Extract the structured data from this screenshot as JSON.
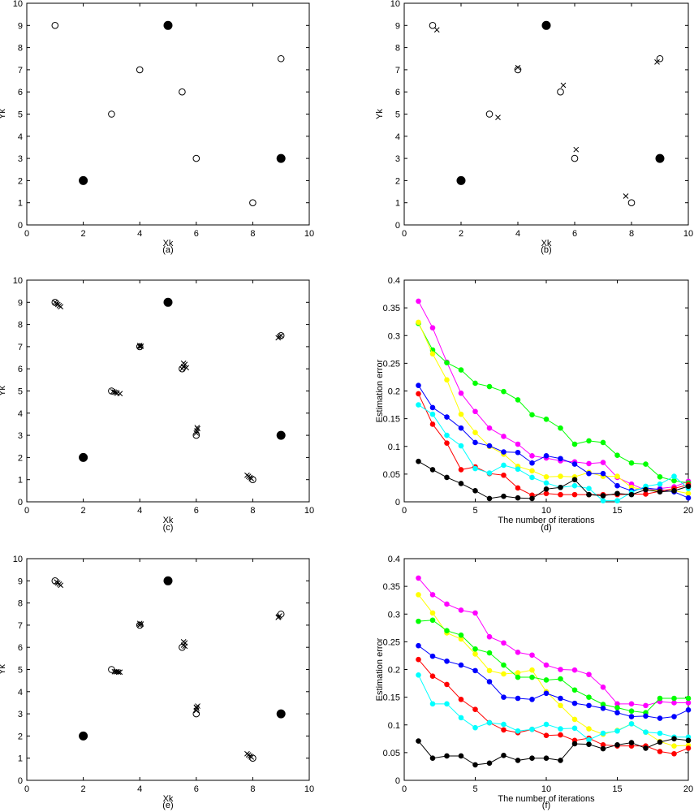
{
  "chart_data": [
    {
      "id": "a",
      "type": "scatter",
      "caption": "(a)",
      "xlabel": "Xk",
      "ylabel": "Yk",
      "xlim": [
        0,
        10
      ],
      "ylim": [
        0,
        10
      ],
      "xticks": [
        0,
        2,
        4,
        6,
        8,
        10
      ],
      "yticks": [
        0,
        1,
        2,
        3,
        4,
        5,
        6,
        7,
        8,
        9,
        10
      ],
      "anchors": [
        [
          2,
          2
        ],
        [
          5,
          9
        ],
        [
          9,
          3
        ]
      ],
      "unknown_nodes": [
        [
          1,
          9
        ],
        [
          3,
          5
        ],
        [
          4,
          7
        ],
        [
          5.5,
          6
        ],
        [
          6,
          3
        ],
        [
          8,
          1
        ],
        [
          9,
          7.5
        ]
      ],
      "estimates": []
    },
    {
      "id": "b",
      "type": "scatter",
      "caption": "(b)",
      "xlabel": "Xk",
      "ylabel": "Yk",
      "xlim": [
        0,
        10
      ],
      "ylim": [
        0,
        10
      ],
      "xticks": [
        0,
        2,
        4,
        6,
        8,
        10
      ],
      "yticks": [
        0,
        1,
        2,
        3,
        4,
        5,
        6,
        7,
        8,
        9,
        10
      ],
      "anchors": [
        [
          2,
          2
        ],
        [
          5,
          9
        ],
        [
          9,
          3
        ]
      ],
      "unknown_nodes": [
        [
          1,
          9
        ],
        [
          3,
          5
        ],
        [
          4,
          7
        ],
        [
          5.5,
          6
        ],
        [
          6,
          3
        ],
        [
          8,
          1
        ],
        [
          9,
          7.5
        ]
      ],
      "estimates": [
        [
          1.15,
          8.8
        ],
        [
          3.3,
          4.85
        ],
        [
          4.0,
          7.1
        ],
        [
          5.6,
          6.3
        ],
        [
          6.05,
          3.4
        ],
        [
          7.8,
          1.3
        ],
        [
          8.9,
          7.35
        ]
      ]
    },
    {
      "id": "c",
      "type": "scatter",
      "caption": "(c)",
      "xlabel": "Xk",
      "ylabel": "Yk",
      "xlim": [
        0,
        10
      ],
      "ylim": [
        0,
        10
      ],
      "xticks": [
        0,
        2,
        4,
        6,
        8,
        10
      ],
      "yticks": [
        0,
        1,
        2,
        3,
        4,
        5,
        6,
        7,
        8,
        9,
        10
      ],
      "anchors": [
        [
          2,
          2
        ],
        [
          5,
          9
        ],
        [
          9,
          3
        ]
      ],
      "unknown_nodes": [
        [
          1,
          9
        ],
        [
          3,
          5
        ],
        [
          4,
          7
        ],
        [
          5.5,
          6
        ],
        [
          6,
          3
        ],
        [
          8,
          1
        ],
        [
          9,
          7.5
        ]
      ],
      "estimates": [
        [
          1.0,
          9.0
        ],
        [
          1.05,
          8.95
        ],
        [
          1.1,
          8.9
        ],
        [
          1.15,
          8.85
        ],
        [
          1.2,
          8.8
        ],
        [
          3.05,
          4.97
        ],
        [
          3.1,
          4.95
        ],
        [
          3.15,
          4.93
        ],
        [
          3.2,
          4.9
        ],
        [
          3.3,
          4.88
        ],
        [
          4.0,
          7.0
        ],
        [
          4.0,
          7.05
        ],
        [
          4.05,
          7.02
        ],
        [
          5.5,
          6.0
        ],
        [
          5.55,
          6.1
        ],
        [
          5.6,
          6.2
        ],
        [
          5.55,
          6.25
        ],
        [
          5.65,
          6.05
        ],
        [
          6.0,
          3.1
        ],
        [
          6.02,
          3.2
        ],
        [
          6.05,
          3.3
        ],
        [
          6.03,
          3.35
        ],
        [
          7.8,
          1.2
        ],
        [
          7.85,
          1.15
        ],
        [
          7.9,
          1.1
        ],
        [
          7.95,
          1.05
        ],
        [
          8.9,
          7.4
        ],
        [
          8.95,
          7.45
        ],
        [
          9.0,
          7.5
        ]
      ]
    },
    {
      "id": "d",
      "type": "line",
      "caption": "(d)",
      "xlabel": "The number of iterations",
      "ylabel": "Estimation error",
      "xlim": [
        0,
        20
      ],
      "ylim": [
        0,
        0.4
      ],
      "xticks": [
        0,
        5,
        10,
        15,
        20
      ],
      "yticks": [
        0,
        0.05,
        0.1,
        0.15,
        0.2,
        0.25,
        0.3,
        0.35,
        0.4
      ],
      "x": [
        1,
        2,
        3,
        4,
        5,
        6,
        7,
        8,
        9,
        10,
        11,
        12,
        13,
        14,
        15,
        16,
        17,
        18,
        19,
        20
      ],
      "series": [
        {
          "color": "#ff00ff",
          "values": [
            0.362,
            0.314,
            0.252,
            0.196,
            0.163,
            0.133,
            0.118,
            0.104,
            0.083,
            0.079,
            0.074,
            0.072,
            0.069,
            0.071,
            0.044,
            0.032,
            0.021,
            0.024,
            0.027,
            0.037
          ]
        },
        {
          "color": "#00ff00",
          "values": [
            0.322,
            0.274,
            0.251,
            0.238,
            0.214,
            0.208,
            0.199,
            0.184,
            0.157,
            0.149,
            0.133,
            0.104,
            0.11,
            0.107,
            0.084,
            0.07,
            0.068,
            0.045,
            0.038,
            0.034
          ]
        },
        {
          "color": "#ffff00",
          "values": [
            0.324,
            0.267,
            0.22,
            0.158,
            0.125,
            0.1,
            0.086,
            0.064,
            0.056,
            0.045,
            0.046,
            0.045,
            0.053,
            0.046,
            0.046,
            0.026,
            0.022,
            0.02,
            0.02,
            0.015
          ]
        },
        {
          "color": "#0000ff",
          "values": [
            0.21,
            0.17,
            0.153,
            0.133,
            0.107,
            0.101,
            0.09,
            0.089,
            0.07,
            0.083,
            0.078,
            0.068,
            0.051,
            0.051,
            0.029,
            0.02,
            0.025,
            0.022,
            0.018,
            0.007
          ]
        },
        {
          "color": "#ff0000",
          "values": [
            0.195,
            0.14,
            0.106,
            0.058,
            0.063,
            0.051,
            0.048,
            0.025,
            0.012,
            0.015,
            0.013,
            0.013,
            0.013,
            0.013,
            0.013,
            0.014,
            0.014,
            0.019,
            0.024,
            0.031
          ]
        },
        {
          "color": "#00ffff",
          "values": [
            0.175,
            0.158,
            0.12,
            0.101,
            0.06,
            0.052,
            0.066,
            0.059,
            0.044,
            0.034,
            0.026,
            0.029,
            0.024,
            0.002,
            0.002,
            0.017,
            0.028,
            0.032,
            0.046,
            0.024
          ]
        },
        {
          "color": "#000000",
          "values": [
            0.073,
            0.058,
            0.044,
            0.033,
            0.02,
            0.006,
            0.01,
            0.007,
            0.006,
            0.023,
            0.026,
            0.04,
            0.013,
            0.011,
            0.015,
            0.013,
            0.022,
            0.018,
            0.02,
            0.028
          ]
        }
      ]
    },
    {
      "id": "e",
      "type": "scatter",
      "caption": "(e)",
      "xlabel": "Xk",
      "ylabel": "Yk",
      "xlim": [
        0,
        10
      ],
      "ylim": [
        0,
        10
      ],
      "xticks": [
        0,
        2,
        4,
        6,
        8,
        10
      ],
      "yticks": [
        0,
        1,
        2,
        3,
        4,
        5,
        6,
        7,
        8,
        9,
        10
      ],
      "anchors": [
        [
          2,
          2
        ],
        [
          5,
          9
        ],
        [
          9,
          3
        ]
      ],
      "unknown_nodes": [
        [
          1,
          9
        ],
        [
          3,
          5
        ],
        [
          4,
          7
        ],
        [
          5.5,
          6
        ],
        [
          6,
          3
        ],
        [
          8,
          1
        ],
        [
          9,
          7.5
        ]
      ],
      "estimates": [
        [
          1.05,
          8.95
        ],
        [
          1.1,
          8.9
        ],
        [
          1.15,
          8.85
        ],
        [
          1.2,
          8.8
        ],
        [
          3.1,
          4.9
        ],
        [
          3.15,
          4.9
        ],
        [
          3.2,
          4.9
        ],
        [
          3.25,
          4.88
        ],
        [
          3.3,
          4.88
        ],
        [
          4.0,
          7.0
        ],
        [
          4.05,
          7.05
        ],
        [
          4.0,
          7.08
        ],
        [
          5.55,
          6.1
        ],
        [
          5.6,
          6.2
        ],
        [
          5.55,
          6.25
        ],
        [
          5.6,
          6.05
        ],
        [
          6.0,
          3.15
        ],
        [
          6.02,
          3.25
        ],
        [
          6.05,
          3.35
        ],
        [
          6.0,
          3.3
        ],
        [
          7.8,
          1.2
        ],
        [
          7.85,
          1.15
        ],
        [
          7.9,
          1.1
        ],
        [
          7.95,
          1.05
        ],
        [
          8.9,
          7.35
        ],
        [
          8.95,
          7.42
        ],
        [
          8.92,
          7.38
        ]
      ]
    },
    {
      "id": "f",
      "type": "line",
      "caption": "(f)",
      "xlabel": "The number of iterations",
      "ylabel": "Estimation error",
      "xlim": [
        0,
        20
      ],
      "ylim": [
        0,
        0.4
      ],
      "xticks": [
        0,
        5,
        10,
        15,
        20
      ],
      "yticks": [
        0,
        0.05,
        0.1,
        0.15,
        0.2,
        0.25,
        0.3,
        0.35,
        0.4
      ],
      "x": [
        1,
        2,
        3,
        4,
        5,
        6,
        7,
        8,
        9,
        10,
        11,
        12,
        13,
        14,
        15,
        16,
        17,
        18,
        19,
        20
      ],
      "series": [
        {
          "color": "#ff00ff",
          "values": [
            0.365,
            0.335,
            0.318,
            0.307,
            0.302,
            0.259,
            0.248,
            0.231,
            0.226,
            0.208,
            0.2,
            0.199,
            0.191,
            0.168,
            0.138,
            0.138,
            0.135,
            0.142,
            0.14,
            0.14
          ]
        },
        {
          "color": "#ffff00",
          "values": [
            0.335,
            0.302,
            0.266,
            0.255,
            0.228,
            0.198,
            0.192,
            0.194,
            0.199,
            0.16,
            0.135,
            0.11,
            0.093,
            0.083,
            0.09,
            0.102,
            0.087,
            0.07,
            0.062,
            0.063
          ]
        },
        {
          "color": "#00ff00",
          "values": [
            0.287,
            0.289,
            0.27,
            0.262,
            0.237,
            0.23,
            0.208,
            0.186,
            0.186,
            0.181,
            0.183,
            0.163,
            0.15,
            0.137,
            0.131,
            0.125,
            0.122,
            0.148,
            0.148,
            0.148
          ]
        },
        {
          "color": "#0000ff",
          "values": [
            0.243,
            0.224,
            0.215,
            0.208,
            0.198,
            0.178,
            0.15,
            0.148,
            0.146,
            0.157,
            0.148,
            0.139,
            0.135,
            0.13,
            0.122,
            0.115,
            0.116,
            0.112,
            0.115,
            0.127
          ]
        },
        {
          "color": "#ff0000",
          "values": [
            0.218,
            0.188,
            0.173,
            0.146,
            0.128,
            0.104,
            0.091,
            0.086,
            0.092,
            0.081,
            0.082,
            0.072,
            0.076,
            0.064,
            0.062,
            0.062,
            0.062,
            0.052,
            0.048,
            0.058
          ]
        },
        {
          "color": "#00ffff",
          "values": [
            0.19,
            0.138,
            0.138,
            0.113,
            0.095,
            0.104,
            0.101,
            0.089,
            0.092,
            0.101,
            0.093,
            0.094,
            0.073,
            0.085,
            0.089,
            0.102,
            0.087,
            0.085,
            0.078,
            0.078
          ]
        },
        {
          "color": "#000000",
          "values": [
            0.071,
            0.04,
            0.044,
            0.044,
            0.028,
            0.031,
            0.045,
            0.036,
            0.04,
            0.04,
            0.036,
            0.066,
            0.065,
            0.057,
            0.064,
            0.068,
            0.058,
            0.069,
            0.075,
            0.072
          ]
        }
      ]
    }
  ]
}
